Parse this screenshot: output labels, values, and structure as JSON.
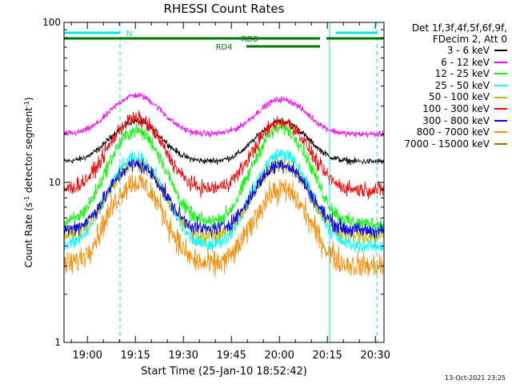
{
  "header": {
    "title": "RHESSI Count Rates"
  },
  "legend_header": [
    "Det 1f,3f,4f,5f,6f,9f,",
    "FDecim 2, Att 0"
  ],
  "footer": {
    "date": "13-Oct-2021 23:25"
  },
  "flags": {
    "n_label": "N",
    "rd0_label": "RD0",
    "rd4_label": "RD4"
  },
  "colors": {
    "eclipse": "#00e5e5",
    "flag_bar": "#007800"
  },
  "chart_data": {
    "type": "line",
    "title": "RHESSI Count Rates",
    "xlabel": "Start Time (25-Jan-10 18:52:42)",
    "ylabel": "Count Rate (s⁻¹ detector segment⁻¹)",
    "ylabel_main": "Count Rate (s",
    "ylabel_sup1": "-1",
    "ylabel_mid": " detector segment",
    "ylabel_sup2": "-1",
    "ylabel_end": ")",
    "x_range_minutes": [
      0,
      100
    ],
    "y_scale": "log",
    "ylim": [
      1,
      100
    ],
    "x_ticks": [
      {
        "label": "19:00",
        "minutes": 7.3
      },
      {
        "label": "19:15",
        "minutes": 22.3
      },
      {
        "label": "19:30",
        "minutes": 37.3
      },
      {
        "label": "19:45",
        "minutes": 52.3
      },
      {
        "label": "20:00",
        "minutes": 67.3
      },
      {
        "label": "20:15",
        "minutes": 82.3
      },
      {
        "label": "20:30",
        "minutes": 97.3
      }
    ],
    "y_ticks": [
      {
        "label": "1",
        "value": 1
      },
      {
        "label": "10",
        "value": 10
      },
      {
        "label": "100",
        "value": 100
      }
    ],
    "series": [
      {
        "name": "3 - 6 keV",
        "color": "#000000",
        "peaks": [
          24,
          24
        ],
        "base": 13.5
      },
      {
        "name": "6 - 12 keV",
        "color": "#ff00ff",
        "peaks": [
          35,
          33
        ],
        "base": 20
      },
      {
        "name": "12 - 25 keV",
        "color": "#00ff00",
        "peaks": [
          21,
          22
        ],
        "base": 5.5
      },
      {
        "name": "25 - 50 keV",
        "color": "#00ffff",
        "peaks": [
          14,
          15
        ],
        "base": 4.0
      },
      {
        "name": "50 - 100 keV",
        "color": "#ccb400",
        "peaks": [
          13,
          13
        ],
        "base": 4.6
      },
      {
        "name": "100 - 300 keV",
        "color": "#ff0000",
        "peaks": [
          25,
          24
        ],
        "base": 9.0
      },
      {
        "name": "300 - 800 keV",
        "color": "#0000ff",
        "peaks": [
          13,
          13
        ],
        "base": 5.0
      },
      {
        "name": "800 - 7000 keV",
        "color": "#ff8c00",
        "peaks": [
          10,
          9
        ],
        "base": 3.0
      },
      {
        "name": "7000 - 15000 keV",
        "color": "#808000",
        "peaks": [],
        "base": null
      }
    ],
    "eclipse_intervals_minutes": [
      [
        -1,
        17.5
      ],
      [
        83,
        97.8
      ]
    ],
    "flag_intervals": {
      "N": [
        [
          0,
          17.5
        ],
        [
          85,
          98
        ]
      ],
      "RD0": [
        [
          0,
          80
        ],
        [
          82,
          100
        ]
      ],
      "RD4": [
        [
          57,
          80
        ]
      ]
    }
  }
}
